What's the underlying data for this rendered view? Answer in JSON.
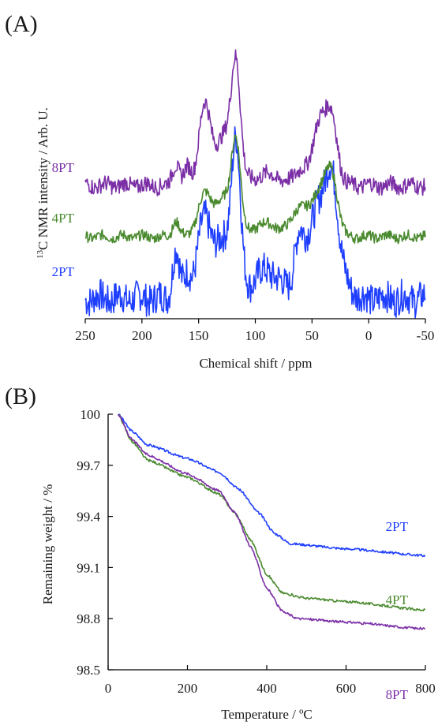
{
  "chart_data": [
    {
      "panel": "(A)",
      "type": "line",
      "xlabel": "Chemical shift / ppm",
      "ylabel_sup": "13",
      "ylabel": "C NMR intensity / Arb. U.",
      "xlim": [
        250,
        -50
      ],
      "xticks": [
        "250",
        "200",
        "150",
        "100",
        "50",
        "0",
        "-50"
      ],
      "grid": false,
      "series": [
        {
          "name": "2PT",
          "color": "#1f3fff",
          "offset": 0,
          "amp": 3.0,
          "noise": 0.08,
          "peaks": [
            [
              145,
              0.55,
              6
            ],
            [
              128,
              0.4,
              8
            ],
            [
              117,
              1.0,
              4
            ],
            [
              170,
              0.35,
              3
            ],
            [
              160,
              0.18,
              3
            ],
            [
              90,
              0.2,
              12
            ],
            [
              62,
              0.35,
              4
            ],
            [
              45,
              0.68,
              9
            ],
            [
              32,
              0.72,
              5
            ],
            [
              20,
              0.12,
              5
            ]
          ]
        },
        {
          "name": "4PT",
          "color": "#4a8a2f",
          "offset": 1.0,
          "amp": 1.9,
          "noise": 0.04,
          "peaks": [
            [
              145,
              0.45,
              6
            ],
            [
              128,
              0.42,
              8
            ],
            [
              117,
              1.0,
              4
            ],
            [
              170,
              0.18,
              3
            ],
            [
              90,
              0.15,
              12
            ],
            [
              62,
              0.3,
              6
            ],
            [
              43,
              0.55,
              8
            ],
            [
              32,
              0.55,
              5
            ]
          ]
        },
        {
          "name": "8PT",
          "color": "#7b2fa6",
          "offset": 2.0,
          "amp": 2.4,
          "noise": 0.05,
          "peaks": [
            [
              145,
              0.7,
              5
            ],
            [
              128,
              0.45,
              8
            ],
            [
              117,
              1.0,
              4
            ],
            [
              170,
              0.2,
              3
            ],
            [
              160,
              0.15,
              3
            ],
            [
              90,
              0.1,
              12
            ],
            [
              60,
              0.15,
              5
            ],
            [
              43,
              0.6,
              6
            ],
            [
              32,
              0.55,
              5
            ]
          ]
        }
      ]
    },
    {
      "panel": "(B)",
      "type": "line",
      "xlabel": "Temperature / ºC",
      "ylabel": "Remaining weight / %",
      "xlim": [
        0,
        800
      ],
      "ylim": [
        98.5,
        100
      ],
      "xticks": [
        "0",
        "200",
        "400",
        "600",
        "800"
      ],
      "yticks": [
        "100",
        "99.7",
        "99.4",
        "99.1",
        "98.8",
        "98.5"
      ],
      "grid": false,
      "series": [
        {
          "name": "2PT",
          "color": "#1f3fff",
          "points": [
            [
              25,
              100.0
            ],
            [
              60,
              99.9
            ],
            [
              100,
              99.82
            ],
            [
              200,
              99.74
            ],
            [
              280,
              99.66
            ],
            [
              330,
              99.56
            ],
            [
              380,
              99.42
            ],
            [
              420,
              99.3
            ],
            [
              460,
              99.24
            ],
            [
              600,
              99.21
            ],
            [
              800,
              99.17
            ]
          ]
        },
        {
          "name": "4PT",
          "color": "#4a8a2f",
          "points": [
            [
              25,
              100.0
            ],
            [
              60,
              99.84
            ],
            [
              100,
              99.73
            ],
            [
              200,
              99.63
            ],
            [
              280,
              99.53
            ],
            [
              320,
              99.42
            ],
            [
              360,
              99.26
            ],
            [
              400,
              99.06
            ],
            [
              440,
              98.95
            ],
            [
              500,
              98.92
            ],
            [
              600,
              98.9
            ],
            [
              800,
              98.85
            ]
          ]
        },
        {
          "name": "8PT",
          "color": "#7b2fa6",
          "points": [
            [
              25,
              100.0
            ],
            [
              60,
              99.85
            ],
            [
              100,
              99.76
            ],
            [
              200,
              99.65
            ],
            [
              280,
              99.55
            ],
            [
              320,
              99.42
            ],
            [
              360,
              99.22
            ],
            [
              400,
              98.98
            ],
            [
              440,
              98.84
            ],
            [
              480,
              98.8
            ],
            [
              600,
              98.78
            ],
            [
              800,
              98.74
            ]
          ]
        }
      ]
    }
  ]
}
